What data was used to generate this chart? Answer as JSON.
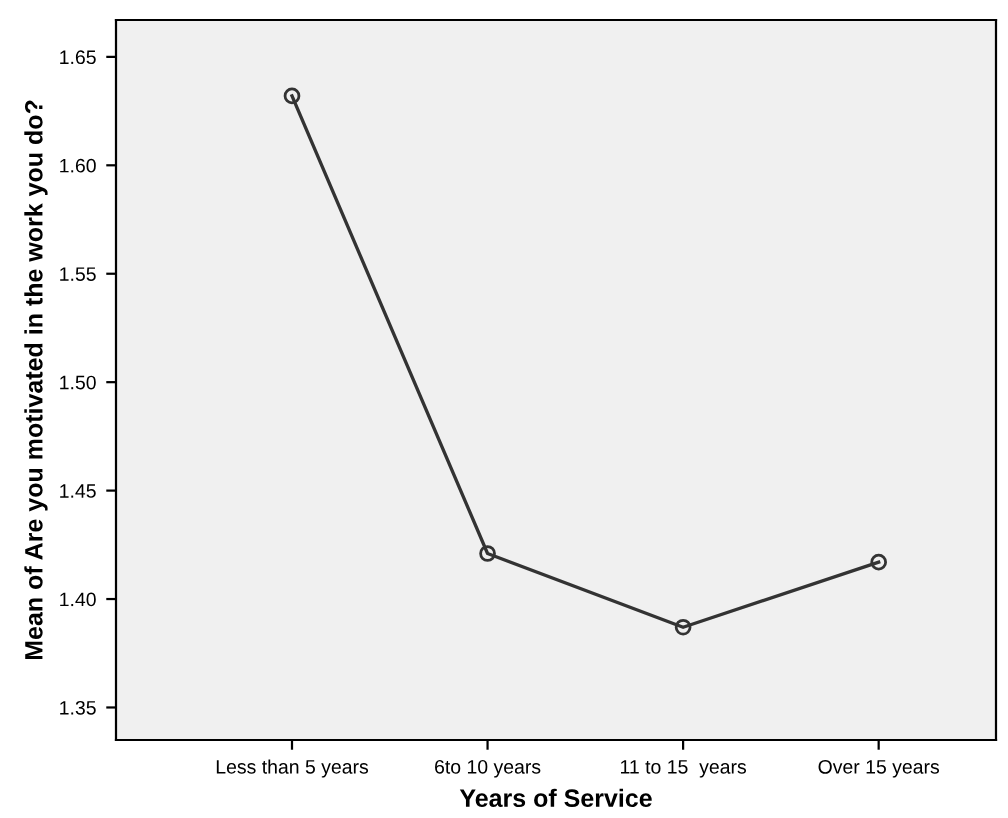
{
  "chart_data": {
    "type": "line",
    "xlabel": "Years of Service",
    "ylabel": "Mean of Are you motivated in the work you do?",
    "categories": [
      "Less than 5 years",
      "6to 10 years",
      "11 to 15  years",
      "Over 15 years"
    ],
    "series": [
      {
        "color": "#333333",
        "values": [
          1.632,
          1.421,
          1.387,
          1.417
        ]
      }
    ],
    "ylim": [
      1.335,
      1.667
    ],
    "yticks": [
      {
        "value": 1.35,
        "label": "1.35"
      },
      {
        "value": 1.4,
        "label": "1.40"
      },
      {
        "value": 1.45,
        "label": "1.45"
      },
      {
        "value": 1.5,
        "label": "1.50"
      },
      {
        "value": 1.55,
        "label": "1.55"
      },
      {
        "value": 1.6,
        "label": "1.60"
      },
      {
        "value": 1.65,
        "label": "1.65"
      }
    ],
    "marker": "circle",
    "line_style": "solid",
    "grid": false,
    "legend": false
  }
}
